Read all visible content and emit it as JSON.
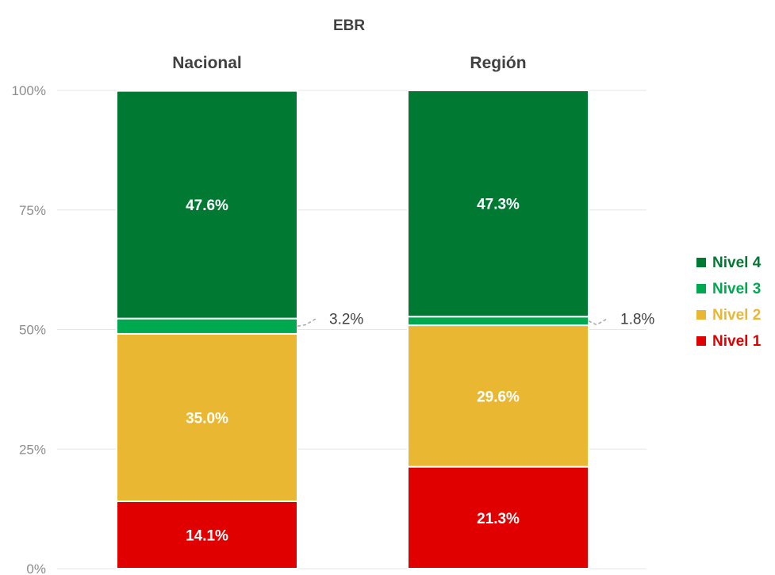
{
  "chart_data": {
    "type": "bar",
    "stacked": true,
    "title": "EBR",
    "categories": [
      "Nacional",
      "Región"
    ],
    "y_ticks": [
      "0%",
      "25%",
      "50%",
      "75%",
      "100%"
    ],
    "ylim": [
      0,
      100
    ],
    "grid": true,
    "legend_position": "right",
    "series": [
      {
        "name": "Nivel 1",
        "color": "#e00000",
        "values": [
          14.1,
          21.3
        ],
        "labels": [
          "14.1%",
          "21.3%"
        ]
      },
      {
        "name": "Nivel 2",
        "color": "#e9b731",
        "values": [
          35.0,
          29.6
        ],
        "labels": [
          "35.0%",
          "29.6%"
        ]
      },
      {
        "name": "Nivel 3",
        "color": "#00a84f",
        "values": [
          3.2,
          1.8
        ],
        "labels": [
          "3.2%",
          "1.8%"
        ]
      },
      {
        "name": "Nivel 4",
        "color": "#007a33",
        "values": [
          47.6,
          47.3
        ],
        "labels": [
          "47.6%",
          "47.3%"
        ]
      }
    ],
    "legend_order": [
      "Nivel 4",
      "Nivel 3",
      "Nivel 2",
      "Nivel 1"
    ]
  }
}
